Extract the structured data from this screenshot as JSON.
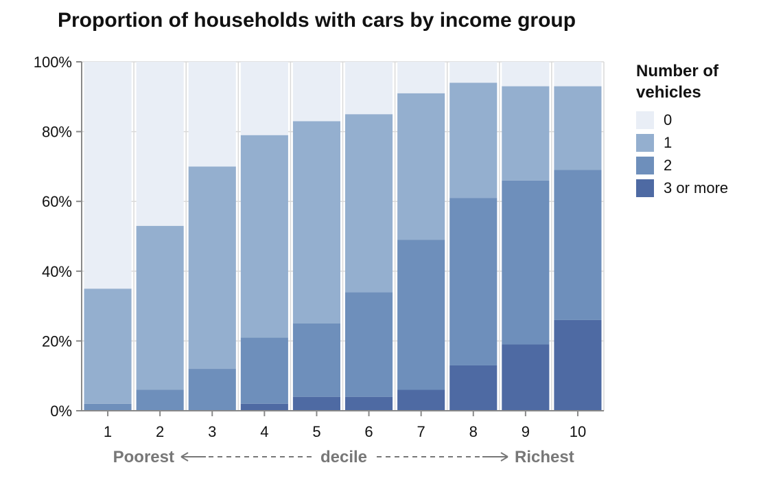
{
  "chart_data": {
    "type": "bar",
    "stacked": true,
    "title": "Proportion of households with cars by income group",
    "categories": [
      "1",
      "2",
      "3",
      "4",
      "5",
      "6",
      "7",
      "8",
      "9",
      "10"
    ],
    "x_axis_words": {
      "left": "Poorest",
      "center": "decile",
      "right": "Richest"
    },
    "ylim": [
      0,
      100
    ],
    "yticks": [
      "0%",
      "20%",
      "40%",
      "60%",
      "80%",
      "100%"
    ],
    "grid": true,
    "legend": {
      "title": "Number of vehicles",
      "position": "right"
    },
    "series": [
      {
        "name": "3 or more",
        "color": "#4e6aa3",
        "values": [
          0,
          0,
          0,
          2,
          4,
          4,
          6,
          13,
          19,
          26
        ]
      },
      {
        "name": "2",
        "color": "#6e8fbb",
        "values": [
          2,
          6,
          12,
          19,
          21,
          30,
          43,
          48,
          47,
          43
        ]
      },
      {
        "name": "1",
        "color": "#94afcf",
        "values": [
          33,
          47,
          58,
          58,
          58,
          51,
          42,
          33,
          27,
          24
        ]
      },
      {
        "name": "0",
        "color": "#e9eef6",
        "values": [
          65,
          47,
          30,
          21,
          17,
          15,
          9,
          6,
          7,
          7
        ]
      }
    ]
  }
}
